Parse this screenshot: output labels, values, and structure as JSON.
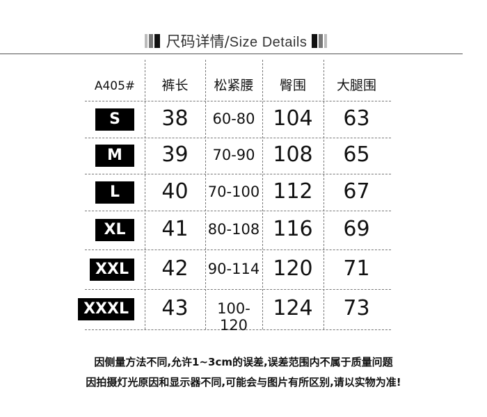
{
  "title": {
    "cn": "尺码详情",
    "sep": "/",
    "en": "Size Details"
  },
  "table": {
    "headers": [
      "A405#",
      "裤长",
      "松紧腰",
      "臀围",
      "大腿围"
    ],
    "rows": [
      {
        "size": "S",
        "length": "38",
        "waist": "60-80",
        "hip": "104",
        "thigh": "63"
      },
      {
        "size": "M",
        "length": "39",
        "waist": "70-90",
        "hip": "108",
        "thigh": "65"
      },
      {
        "size": "L",
        "length": "40",
        "waist": "70-100",
        "hip": "112",
        "thigh": "67"
      },
      {
        "size": "XL",
        "length": "41",
        "waist": "80-108",
        "hip": "116",
        "thigh": "69"
      },
      {
        "size": "XXL",
        "length": "42",
        "waist": "90-114",
        "hip": "120",
        "thigh": "71"
      },
      {
        "size": "XXXL",
        "length": "43",
        "waist": "100-120",
        "hip": "124",
        "thigh": "73"
      }
    ]
  },
  "notes": [
    "因侧量方法不同,允许1~3cm的误差,误差范围内不属于质量问题",
    "因拍摄灯光原因和显示器不同,可能会与图片有所区别,请以实物为准!"
  ]
}
